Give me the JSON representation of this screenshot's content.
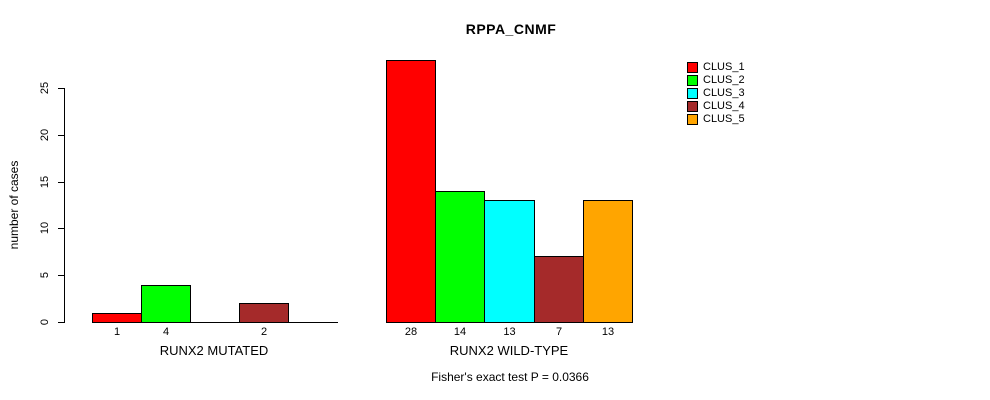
{
  "title": "RPPA_CNMF",
  "chart_data": {
    "type": "bar",
    "title": "RPPA_CNMF",
    "ylabel": "number of cases",
    "ylim": [
      0,
      28
    ],
    "y_ticks": [
      0,
      5,
      10,
      15,
      20,
      25
    ],
    "grid": false,
    "categories": [
      "CLUS_1",
      "CLUS_2",
      "CLUS_3",
      "CLUS_4",
      "CLUS_5"
    ],
    "colors": [
      "#FF0000",
      "#00FF00",
      "#00FFFF",
      "#A52A2A",
      "#FFA500"
    ],
    "groups": [
      {
        "label": "RUNX2 MUTATED",
        "values": [
          1,
          4,
          0,
          2,
          0
        ]
      },
      {
        "label": "RUNX2 WILD-TYPE",
        "values": [
          28,
          14,
          13,
          7,
          13
        ]
      }
    ],
    "bar_value_labels": {
      "RUNX2 MUTATED": [
        "1",
        "4",
        "",
        "2",
        ""
      ],
      "RUNX2 WILD-TYPE": [
        "28",
        "14",
        "13",
        "7",
        "13"
      ]
    },
    "legend_position": "top-right",
    "annotation": "Fisher's exact test P = 0.0366"
  }
}
